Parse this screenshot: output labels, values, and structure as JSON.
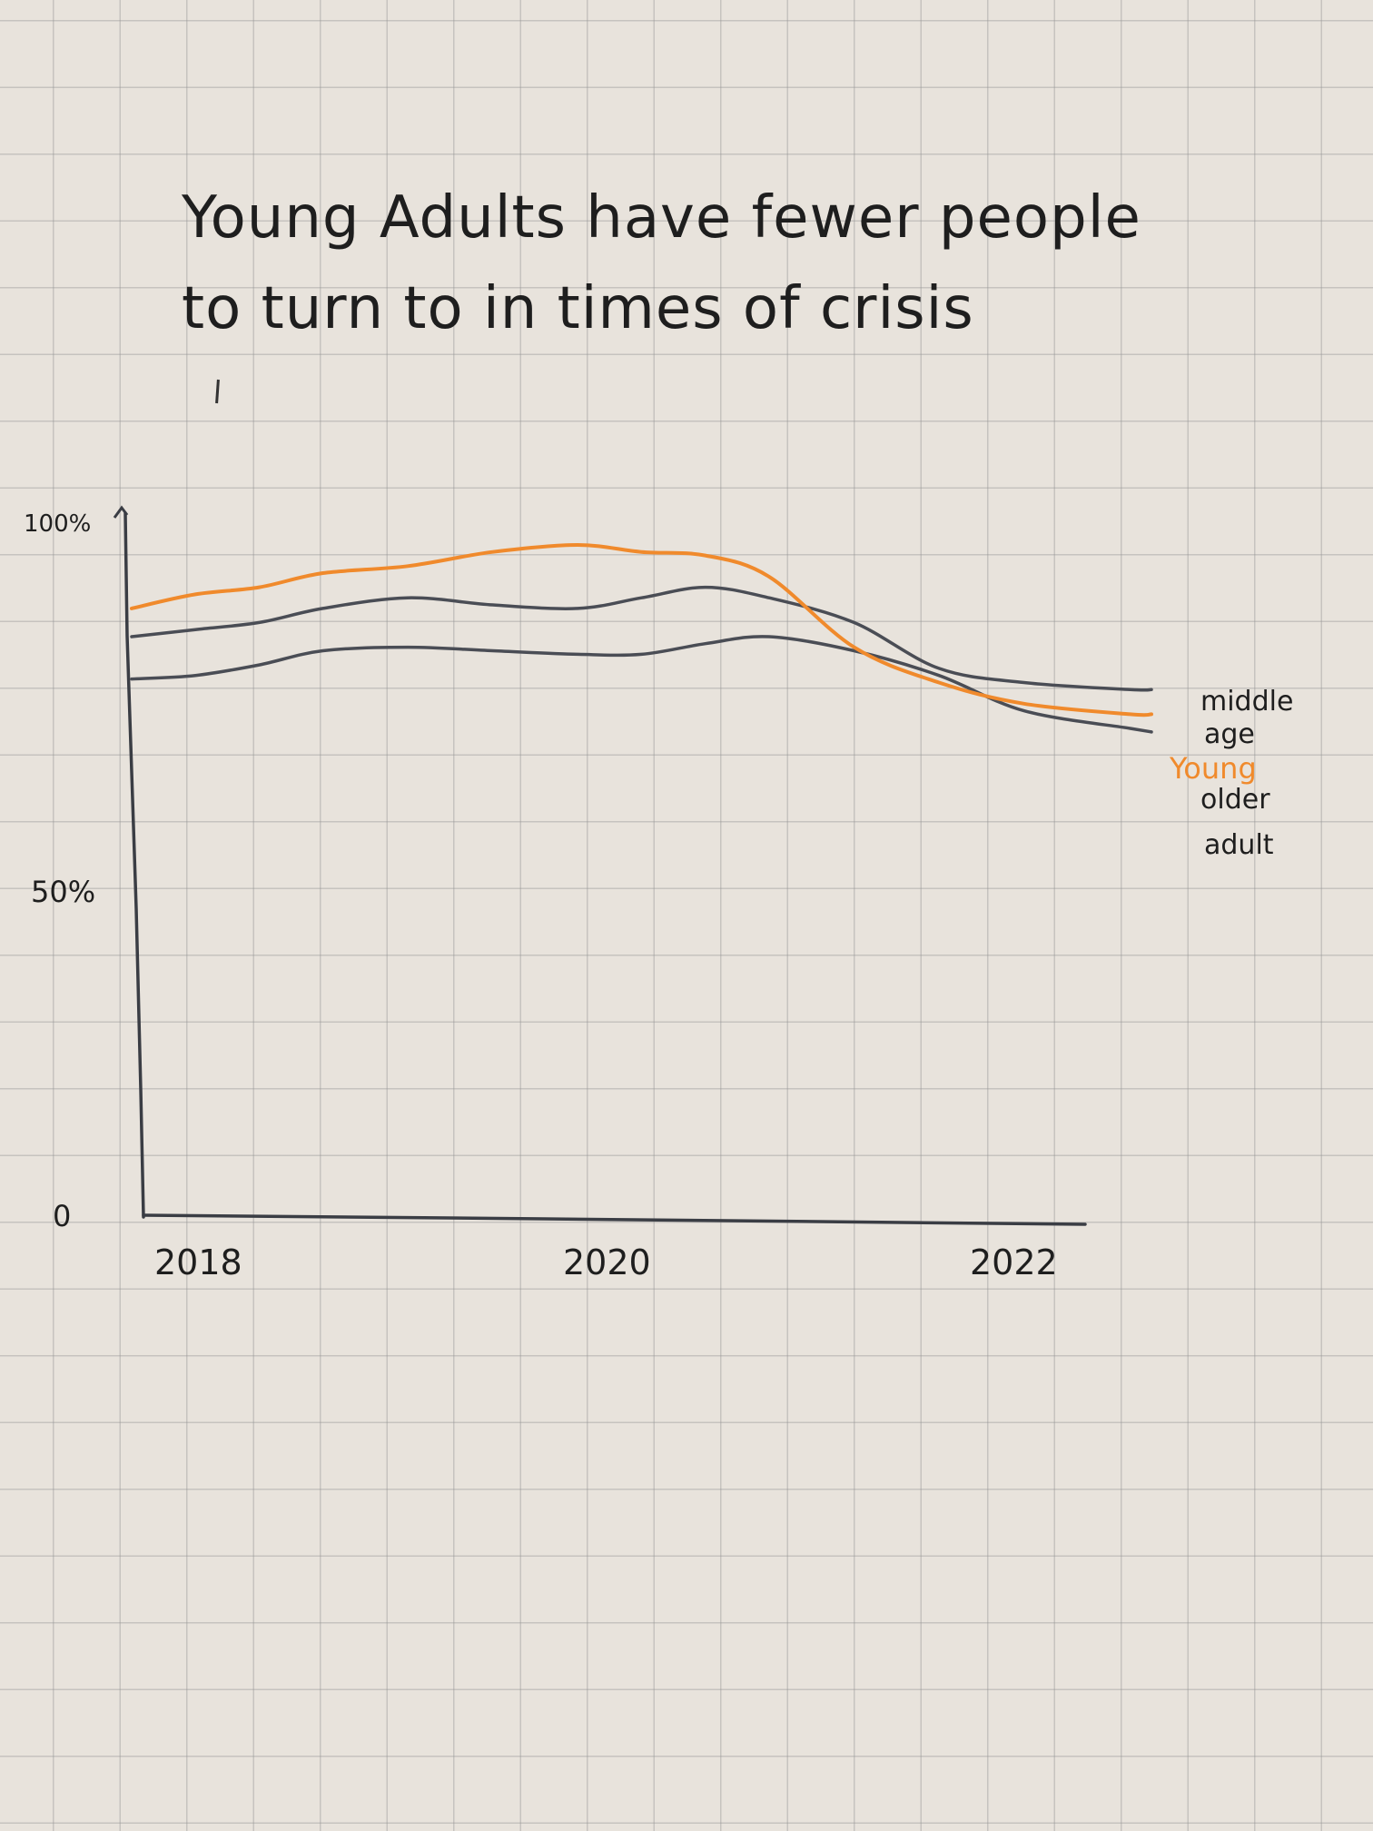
{
  "chart_data": {
    "type": "line",
    "title_lines": [
      "Young Adults have fewer people",
      "to turn to in times of crisis"
    ],
    "xlabel": "",
    "ylabel": "",
    "x_ticks": [
      "2018",
      "2020",
      "2022"
    ],
    "y_ticks": [
      {
        "value": 0,
        "label": "0"
      },
      {
        "value": 50,
        "label": "50%"
      },
      {
        "value": 100,
        "label": "100%"
      }
    ],
    "xlim": [
      2017.6,
      2022.4
    ],
    "ylim": [
      0,
      100
    ],
    "grid": true,
    "colors": {
      "young": "#f08a2c",
      "middle_age": "#4a4d55",
      "older_adult": "#4a4d55"
    },
    "series": [
      {
        "key": "young",
        "name": "Young",
        "x": [
          2017.6,
          2017.9,
          2018.2,
          2018.5,
          2018.9,
          2019.3,
          2019.7,
          2020.0,
          2020.3,
          2020.6,
          2021.0,
          2021.4,
          2021.8,
          2022.3,
          2022.4
        ],
        "values": [
          86.5,
          88.5,
          89.5,
          91.5,
          92.5,
          94.5,
          95.5,
          94.5,
          94,
          91,
          81,
          76,
          73,
          71.5,
          71.5
        ]
      },
      {
        "key": "middle_age",
        "name": "middle age",
        "x": [
          2017.6,
          2017.9,
          2018.2,
          2018.5,
          2018.9,
          2019.3,
          2019.7,
          2020.0,
          2020.3,
          2020.6,
          2021.0,
          2021.4,
          2021.8,
          2022.3,
          2022.4
        ],
        "values": [
          82.5,
          83.5,
          84.5,
          86.5,
          88,
          87,
          86.5,
          88,
          89.5,
          88,
          84.5,
          78,
          76,
          75,
          75
        ]
      },
      {
        "key": "older_adult",
        "name": "older adult",
        "x": [
          2017.6,
          2017.9,
          2018.2,
          2018.5,
          2018.9,
          2019.3,
          2019.7,
          2020.0,
          2020.3,
          2020.6,
          2021.0,
          2021.4,
          2021.8,
          2022.3,
          2022.4
        ],
        "values": [
          76.5,
          77,
          78.5,
          80.5,
          81,
          80.5,
          80,
          80,
          81.5,
          82.5,
          80.5,
          77,
          72,
          69.5,
          69
        ]
      }
    ],
    "legend_labels": [
      {
        "key": "middle_age",
        "lines": [
          "middle",
          "age"
        ]
      },
      {
        "key": "young",
        "lines": [
          "Young"
        ]
      },
      {
        "key": "older_adult",
        "lines": [
          "older",
          "adult"
        ]
      }
    ]
  }
}
